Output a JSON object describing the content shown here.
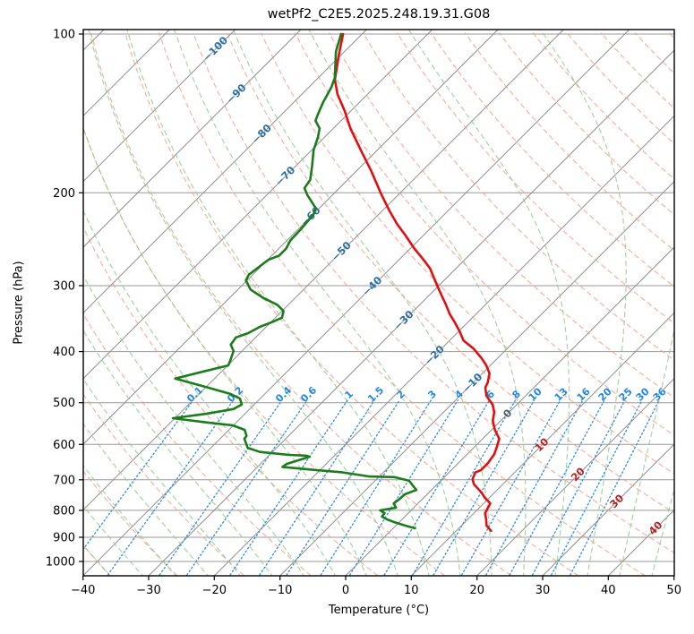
{
  "title": "wetPf2_C2E5.2025.248.19.31.G08",
  "axes": {
    "xlabel": "Temperature (°C)",
    "ylabel": "Pressure (hPa)"
  },
  "colors": {
    "temperature_line": "#e01010",
    "dewpoint_line": "#1c7c1c",
    "isotherm": "#8e8e8e",
    "pressure_grid": "#999999",
    "dry_adiabat": "#f39a84",
    "moist_adiabat": "#90cb90",
    "mixing_line": "#3d93dd",
    "isotherm_label_negative": "#2e6da4",
    "isotherm_label_zero": "#5a5a5a",
    "isotherm_label_positive": "#b22222",
    "mixing_label": "#2288dd",
    "spine": "#000000"
  },
  "chart_data": {
    "type": "line",
    "variant": "skew-t-log-p sounding",
    "title": "wetPf2_C2E5.2025.248.19.31.G08",
    "x_axis": {
      "label": "Temperature (°C)",
      "units": "°C",
      "range": [
        -40,
        50
      ],
      "ticks": [
        {
          "value": -40,
          "label": "−40"
        },
        {
          "value": -30,
          "label": "−30"
        },
        {
          "value": -20,
          "label": "−20"
        },
        {
          "value": -10,
          "label": "−10"
        },
        {
          "value": 0,
          "label": "0"
        },
        {
          "value": 10,
          "label": "10"
        },
        {
          "value": 20,
          "label": "20"
        },
        {
          "value": 30,
          "label": "30"
        },
        {
          "value": 40,
          "label": "40"
        },
        {
          "value": 50,
          "label": "50"
        }
      ]
    },
    "y_axis": {
      "label": "Pressure (hPa)",
      "units": "hPa",
      "scale": "log",
      "range": [
        1064,
        98
      ],
      "ticks": [
        {
          "value": 100,
          "label": "100"
        },
        {
          "value": 200,
          "label": "200"
        },
        {
          "value": 300,
          "label": "300"
        },
        {
          "value": 400,
          "label": "400"
        },
        {
          "value": 500,
          "label": "500"
        },
        {
          "value": 600,
          "label": "600"
        },
        {
          "value": 700,
          "label": "700"
        },
        {
          "value": 800,
          "label": "800"
        },
        {
          "value": 900,
          "label": "900"
        },
        {
          "value": 1000,
          "label": "1000"
        }
      ]
    },
    "grid": true,
    "legend": null,
    "isotherms_c": {
      "start": -120,
      "end": 50,
      "step": 10
    },
    "isotherm_labels": [
      {
        "value": -100,
        "label": "−100"
      },
      {
        "value": -90,
        "label": "−90"
      },
      {
        "value": -80,
        "label": "−80"
      },
      {
        "value": -70,
        "label": "−70"
      },
      {
        "value": -60,
        "label": "−60"
      },
      {
        "value": -50,
        "label": "−50"
      },
      {
        "value": -40,
        "label": "−40"
      },
      {
        "value": -30,
        "label": "−30"
      },
      {
        "value": -20,
        "label": "−20"
      },
      {
        "value": -10,
        "label": "−10"
      },
      {
        "value": 0,
        "label": "0"
      },
      {
        "value": 10,
        "label": "10"
      },
      {
        "value": 20,
        "label": "20"
      },
      {
        "value": 30,
        "label": "30"
      },
      {
        "value": 40,
        "label": "40"
      }
    ],
    "dry_adiabats_theta_c": {
      "start": -40,
      "end": 190,
      "step": 10
    },
    "moist_adiabats_t0_c": {
      "start": -40,
      "end": 45,
      "step": 5
    },
    "mixing_ratio_lines_g_per_kg": [
      {
        "value": 0.1,
        "label": "0.1"
      },
      {
        "value": 0.2,
        "label": "0.2"
      },
      {
        "value": 0.4,
        "label": "0.4"
      },
      {
        "value": 0.6,
        "label": "0.6"
      },
      {
        "value": 1,
        "label": "1"
      },
      {
        "value": 1.5,
        "label": "1.5"
      },
      {
        "value": 2,
        "label": "2"
      },
      {
        "value": 3,
        "label": "3"
      },
      {
        "value": 4,
        "label": "4"
      },
      {
        "value": 6,
        "label": "6"
      },
      {
        "value": 8,
        "label": "8"
      },
      {
        "value": 10,
        "label": "10"
      },
      {
        "value": 13,
        "label": "13"
      },
      {
        "value": 16,
        "label": "16"
      },
      {
        "value": 20,
        "label": "20"
      },
      {
        "value": 25,
        "label": "25"
      },
      {
        "value": 30,
        "label": "30"
      },
      {
        "value": 36,
        "label": "36"
      }
    ],
    "series": [
      {
        "name": "temperature",
        "color": "#e01010",
        "units": [
          "hPa",
          "°C"
        ],
        "points": [
          [
            100,
            -82.9
          ],
          [
            109,
            -80.5
          ],
          [
            122,
            -77.2
          ],
          [
            130,
            -74.6
          ],
          [
            140,
            -70.9
          ],
          [
            151,
            -67.4
          ],
          [
            168,
            -61.9
          ],
          [
            182,
            -57.7
          ],
          [
            200,
            -53.0
          ],
          [
            216,
            -49.0
          ],
          [
            229,
            -45.8
          ],
          [
            241,
            -42.7
          ],
          [
            255,
            -39.4
          ],
          [
            266,
            -36.7
          ],
          [
            278,
            -34.0
          ],
          [
            299,
            -30.4
          ],
          [
            313,
            -28.1
          ],
          [
            326,
            -26.0
          ],
          [
            339,
            -24.1
          ],
          [
            352,
            -22.0
          ],
          [
            366,
            -19.9
          ],
          [
            381,
            -17.9
          ],
          [
            395,
            -15.1
          ],
          [
            412,
            -12.4
          ],
          [
            425,
            -10.6
          ],
          [
            440,
            -8.9
          ],
          [
            458,
            -7.8
          ],
          [
            468,
            -7.4
          ],
          [
            485,
            -6.0
          ],
          [
            504,
            -3.7
          ],
          [
            521,
            -2.3
          ],
          [
            541,
            -1.2
          ],
          [
            563,
            0.5
          ],
          [
            585,
            2.5
          ],
          [
            609,
            3.5
          ],
          [
            626,
            4.1
          ],
          [
            650,
            4.5
          ],
          [
            671,
            4.5
          ],
          [
            678,
            4.0
          ],
          [
            698,
            4.6
          ],
          [
            714,
            5.6
          ],
          [
            728,
            6.9
          ],
          [
            740,
            8.0
          ],
          [
            757,
            9.3
          ],
          [
            776,
            11.0
          ],
          [
            810,
            11.7
          ],
          [
            832,
            12.8
          ],
          [
            855,
            13.8
          ],
          [
            875,
            15.3
          ]
        ]
      },
      {
        "name": "dewpoint",
        "color": "#1c7c1c",
        "units": [
          "hPa",
          "°C"
        ],
        "points": [
          [
            100,
            -83.2
          ],
          [
            108,
            -81.3
          ],
          [
            121,
            -77.5
          ],
          [
            126,
            -76.6
          ],
          [
            135,
            -75.5
          ],
          [
            142,
            -74.5
          ],
          [
            146,
            -73.9
          ],
          [
            151,
            -72.1
          ],
          [
            157,
            -71.0
          ],
          [
            166,
            -69.7
          ],
          [
            178,
            -67.5
          ],
          [
            189,
            -65.7
          ],
          [
            196,
            -65.3
          ],
          [
            202,
            -63.8
          ],
          [
            214,
            -60.5
          ],
          [
            220,
            -59.9
          ],
          [
            235,
            -59.6
          ],
          [
            246,
            -59.5
          ],
          [
            255,
            -58.9
          ],
          [
            263,
            -58.9
          ],
          [
            268,
            -59.9
          ],
          [
            273,
            -60.1
          ],
          [
            278,
            -60.3
          ],
          [
            286,
            -60.6
          ],
          [
            293,
            -60.2
          ],
          [
            305,
            -58.1
          ],
          [
            317,
            -54.7
          ],
          [
            326,
            -51.7
          ],
          [
            335,
            -49.8
          ],
          [
            345,
            -49.0
          ],
          [
            352,
            -49.9
          ],
          [
            359,
            -51.0
          ],
          [
            369,
            -51.8
          ],
          [
            376,
            -53.0
          ],
          [
            388,
            -52.7
          ],
          [
            399,
            -51.3
          ],
          [
            417,
            -50.3
          ],
          [
            425,
            -49.9
          ],
          [
            437,
            -52.9
          ],
          [
            450,
            -56.0
          ],
          [
            466,
            -50.3
          ],
          [
            481,
            -45.3
          ],
          [
            491,
            -43.1
          ],
          [
            504,
            -41.9
          ],
          [
            514,
            -42.5
          ],
          [
            525,
            -46.0
          ],
          [
            535,
            -50.3
          ],
          [
            545,
            -44.6
          ],
          [
            552,
            -40.1
          ],
          [
            563,
            -37.6
          ],
          [
            578,
            -36.4
          ],
          [
            585,
            -36.3
          ],
          [
            609,
            -34.4
          ],
          [
            620,
            -31.9
          ],
          [
            628,
            -27.0
          ],
          [
            630,
            -24.4
          ],
          [
            633,
            -23.6
          ],
          [
            653,
            -26.0
          ],
          [
            662,
            -26.2
          ],
          [
            665,
            -24.4
          ],
          [
            671,
            -20.6
          ],
          [
            678,
            -16.1
          ],
          [
            690,
            -11.5
          ],
          [
            692,
            -7.6
          ],
          [
            703,
            -4.8
          ],
          [
            732,
            -2.3
          ],
          [
            746,
            -3.4
          ],
          [
            763,
            -3.5
          ],
          [
            776,
            -3.7
          ],
          [
            791,
            -2.7
          ],
          [
            800,
            -4.7
          ],
          [
            810,
            -3.6
          ],
          [
            822,
            -3.5
          ],
          [
            832,
            -2.3
          ],
          [
            842,
            -0.8
          ],
          [
            855,
            1.4
          ],
          [
            865,
            3.3
          ]
        ]
      }
    ]
  }
}
